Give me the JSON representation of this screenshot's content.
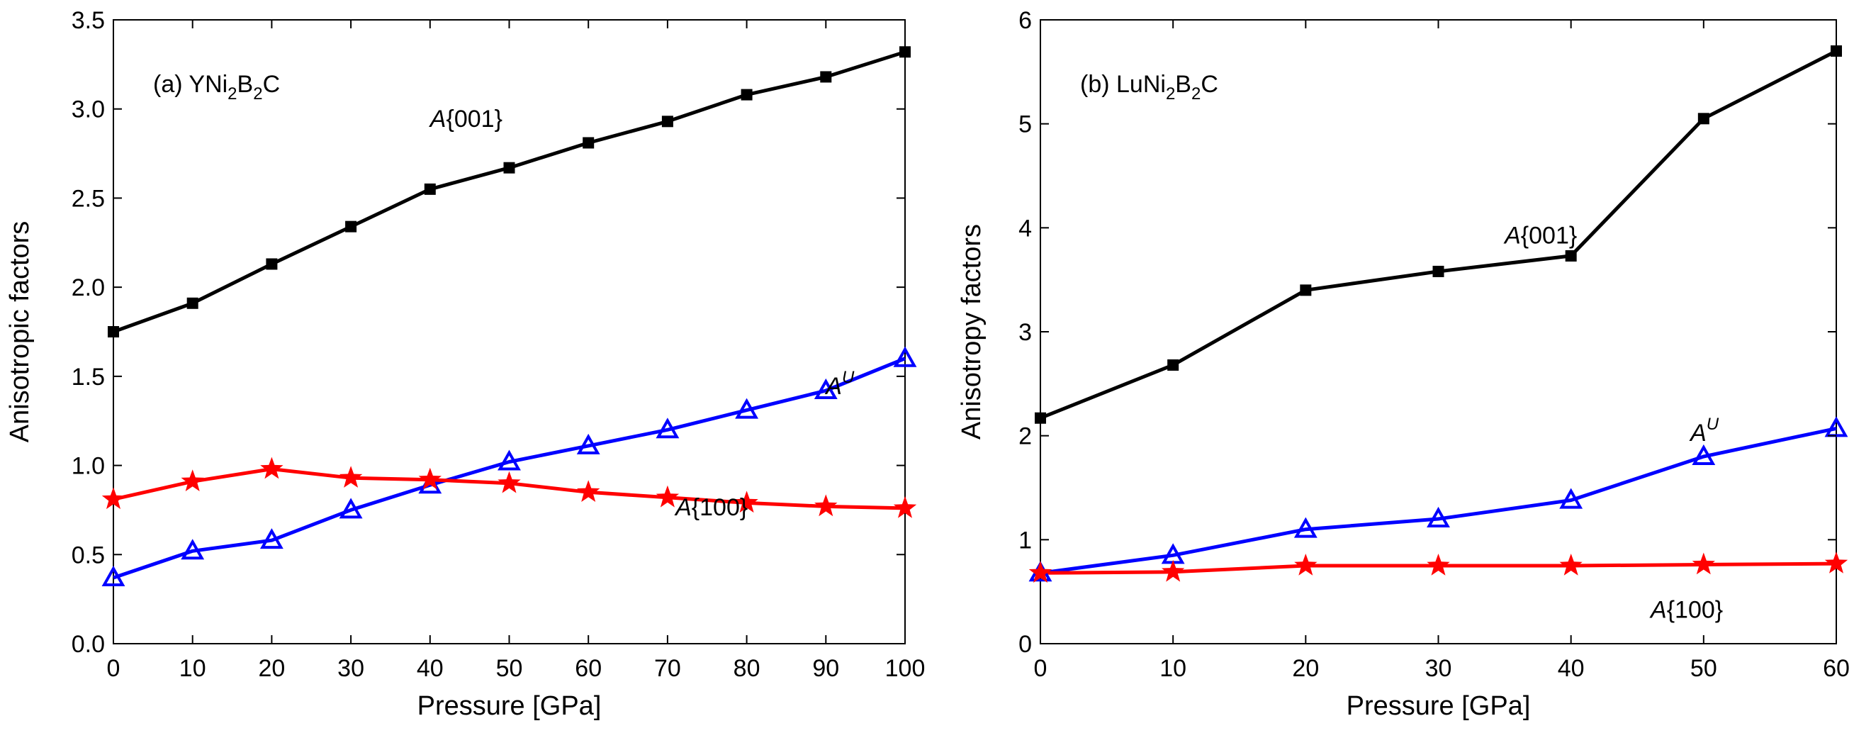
{
  "chart_data": [
    {
      "type": "line",
      "annotation": {
        "prefix": "(a) YNi",
        "sub1": "2",
        "mid": "B",
        "sub2": "2",
        "suffix": "C"
      },
      "xlabel": "Pressure [GPa]",
      "ylabel": "Anisotropic factors",
      "xlim": [
        0,
        100
      ],
      "ylim": [
        0,
        3.5
      ],
      "xticks": [
        "0",
        "10",
        "20",
        "30",
        "40",
        "50",
        "60",
        "70",
        "80",
        "90",
        "100"
      ],
      "yticks": [
        "0.0",
        "0.5",
        "1.0",
        "1.5",
        "2.0",
        "2.5",
        "3.0",
        "3.5"
      ],
      "grid": false,
      "x": [
        0,
        10,
        20,
        30,
        40,
        50,
        60,
        70,
        80,
        90,
        100
      ],
      "series": [
        {
          "label": {
            "base": "A",
            "rest": "{001}",
            "sup": ""
          },
          "color": "#000000",
          "marker": "square",
          "values": [
            1.75,
            1.91,
            2.13,
            2.34,
            2.55,
            2.67,
            2.81,
            2.93,
            3.08,
            3.18,
            3.32
          ]
        },
        {
          "label": {
            "base": "A",
            "rest": "",
            "sup": "U"
          },
          "color": "#0000ff",
          "marker": "triangle",
          "values": [
            0.37,
            0.52,
            0.58,
            0.75,
            0.89,
            1.02,
            1.11,
            1.2,
            1.31,
            1.42,
            1.6
          ]
        },
        {
          "label": {
            "base": "A",
            "rest": "{100}",
            "sup": ""
          },
          "color": "#ff0000",
          "marker": "star",
          "values": [
            0.81,
            0.91,
            0.98,
            0.93,
            0.92,
            0.9,
            0.85,
            0.82,
            0.79,
            0.77,
            0.76
          ]
        }
      ]
    },
    {
      "type": "line",
      "annotation": {
        "prefix": "(b) LuNi",
        "sub1": "2",
        "mid": "B",
        "sub2": "2",
        "suffix": "C"
      },
      "xlabel": "Pressure [GPa]",
      "ylabel": "Anisotropy factors",
      "xlim": [
        0,
        60
      ],
      "ylim": [
        0,
        6
      ],
      "xticks": [
        "0",
        "10",
        "20",
        "30",
        "40",
        "50",
        "60"
      ],
      "yticks": [
        "0",
        "1",
        "2",
        "3",
        "4",
        "5",
        "6"
      ],
      "grid": false,
      "x": [
        0,
        10,
        20,
        30,
        40,
        50,
        60
      ],
      "series": [
        {
          "label": {
            "base": "A",
            "rest": "{001}",
            "sup": ""
          },
          "color": "#000000",
          "marker": "square",
          "values": [
            2.17,
            2.68,
            3.4,
            3.58,
            3.73,
            5.05,
            5.7
          ]
        },
        {
          "label": {
            "base": "A",
            "rest": "",
            "sup": "U"
          },
          "color": "#0000ff",
          "marker": "triangle",
          "values": [
            0.68,
            0.85,
            1.1,
            1.2,
            1.38,
            1.8,
            2.07
          ]
        },
        {
          "label": {
            "base": "A",
            "rest": "{100}",
            "sup": ""
          },
          "color": "#ff0000",
          "marker": "star",
          "values": [
            0.68,
            0.69,
            0.75,
            0.75,
            0.75,
            0.76,
            0.77
          ]
        }
      ]
    }
  ]
}
